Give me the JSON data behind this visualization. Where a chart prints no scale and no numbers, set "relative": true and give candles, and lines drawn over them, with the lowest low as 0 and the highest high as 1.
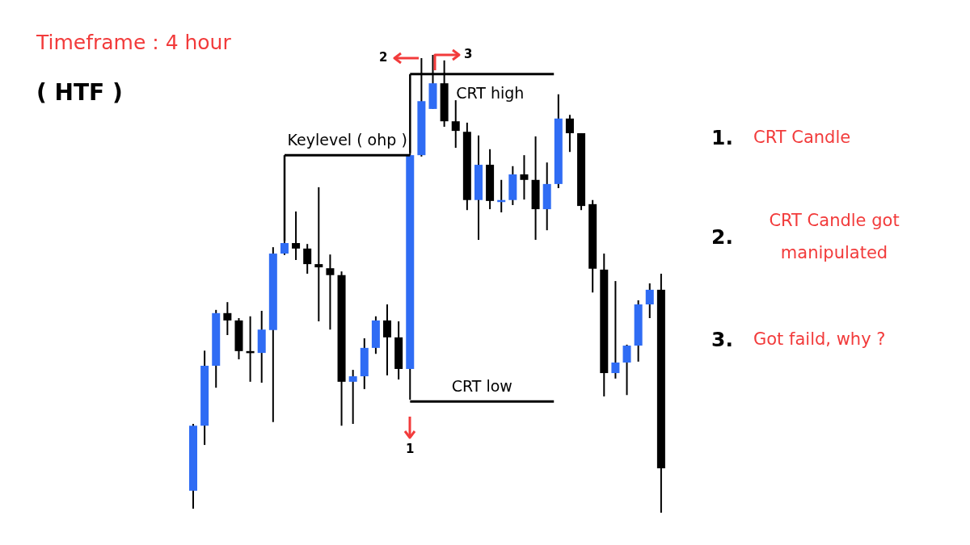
{
  "chart_data": {
    "type": "candlestick",
    "relative": true,
    "title": "Timeframe : 4 hour",
    "subtitle": "( HTF )",
    "categories": [
      null,
      null,
      null,
      null,
      null,
      null,
      null,
      null,
      null,
      null,
      null,
      null,
      null,
      null,
      null,
      null,
      null,
      null,
      null,
      null,
      null,
      null,
      null,
      null,
      null,
      null,
      null,
      null,
      null,
      null,
      null,
      null,
      null,
      null,
      null,
      null,
      null,
      null,
      null,
      null,
      null,
      null
    ],
    "ohlc": [
      [
        0.048,
        0.194,
        0.009,
        0.19
      ],
      [
        0.19,
        0.354,
        0.148,
        0.321
      ],
      [
        0.321,
        0.443,
        0.273,
        0.436
      ],
      [
        0.436,
        0.46,
        0.388,
        0.42
      ],
      [
        0.42,
        0.425,
        0.335,
        0.353
      ],
      [
        0.353,
        0.429,
        0.286,
        0.349
      ],
      [
        0.349,
        0.441,
        0.284,
        0.4
      ],
      [
        0.399,
        0.58,
        0.198,
        0.566
      ],
      [
        0.566,
        0.593,
        0.563,
        0.589
      ],
      [
        0.589,
        0.658,
        0.552,
        0.577
      ],
      [
        0.577,
        0.587,
        0.522,
        0.543
      ],
      [
        0.543,
        0.711,
        0.418,
        0.536
      ],
      [
        0.534,
        0.564,
        0.4,
        0.519
      ],
      [
        0.519,
        0.527,
        0.19,
        0.286
      ],
      [
        0.286,
        0.312,
        0.194,
        0.298
      ],
      [
        0.298,
        0.381,
        0.27,
        0.36
      ],
      [
        0.36,
        0.429,
        0.347,
        0.42
      ],
      [
        0.42,
        0.455,
        0.3,
        0.383
      ],
      [
        0.383,
        0.418,
        0.291,
        0.314
      ],
      [
        0.314,
        0.785,
        0.247,
        0.781
      ],
      [
        0.781,
        0.993,
        0.778,
        0.899
      ],
      [
        0.882,
        1.0,
        0.882,
        0.938
      ],
      [
        0.938,
        0.988,
        0.843,
        0.855
      ],
      [
        0.855,
        0.901,
        0.797,
        0.834
      ],
      [
        0.832,
        0.852,
        0.661,
        0.683
      ],
      [
        0.683,
        0.824,
        0.596,
        0.76
      ],
      [
        0.76,
        0.794,
        0.663,
        0.681
      ],
      [
        0.681,
        0.727,
        0.656,
        0.683
      ],
      [
        0.683,
        0.757,
        0.672,
        0.739
      ],
      [
        0.739,
        0.781,
        0.684,
        0.727
      ],
      [
        0.727,
        0.822,
        0.596,
        0.663
      ],
      [
        0.663,
        0.765,
        0.617,
        0.718
      ],
      [
        0.718,
        0.914,
        0.709,
        0.861
      ],
      [
        0.861,
        0.869,
        0.788,
        0.829
      ],
      [
        0.829,
        0.829,
        0.661,
        0.67
      ],
      [
        0.674,
        0.683,
        0.481,
        0.533
      ],
      [
        0.531,
        0.566,
        0.254,
        0.305
      ],
      [
        0.305,
        0.506,
        0.293,
        0.328
      ],
      [
        0.328,
        0.367,
        0.257,
        0.365
      ],
      [
        0.365,
        0.464,
        0.33,
        0.455
      ],
      [
        0.455,
        0.501,
        0.425,
        0.487
      ],
      [
        0.487,
        0.522,
        0.0,
        0.097
      ]
    ],
    "colors": [
      "#2f6cf4",
      "#2f6cf4",
      "#2f6cf4",
      "#000000",
      "#000000",
      "#000000",
      "#2f6cf4",
      "#2f6cf4",
      "#2f6cf4",
      "#000000",
      "#000000",
      "#000000",
      "#000000",
      "#000000",
      "#2f6cf4",
      "#2f6cf4",
      "#2f6cf4",
      "#000000",
      "#000000",
      "#2f6cf4",
      "#2f6cf4",
      "#2f6cf4",
      "#000000",
      "#000000",
      "#000000",
      "#2f6cf4",
      "#000000",
      "#2f6cf4",
      "#2f6cf4",
      "#000000",
      "#000000",
      "#2f6cf4",
      "#2f6cf4",
      "#000000",
      "#000000",
      "#000000",
      "#000000",
      "#2f6cf4",
      "#2f6cf4",
      "#2f6cf4",
      "#2f6cf4",
      "#000000"
    ],
    "ref_lines": [
      {
        "axis": "y",
        "value": 0.781,
        "label": "Keylevel ( ohp )",
        "color": "#000000"
      },
      {
        "axis": "y",
        "value": 0.958,
        "label": "CRT high",
        "color": "#000000"
      },
      {
        "axis": "y",
        "value": 0.243,
        "label": "CRT low",
        "color": "#000000"
      }
    ],
    "annotations": [
      "1. CRT Candle",
      "2. CRT Candle got manipulated",
      "3. Got faild, why ?",
      "1",
      "2",
      "3"
    ]
  }
}
